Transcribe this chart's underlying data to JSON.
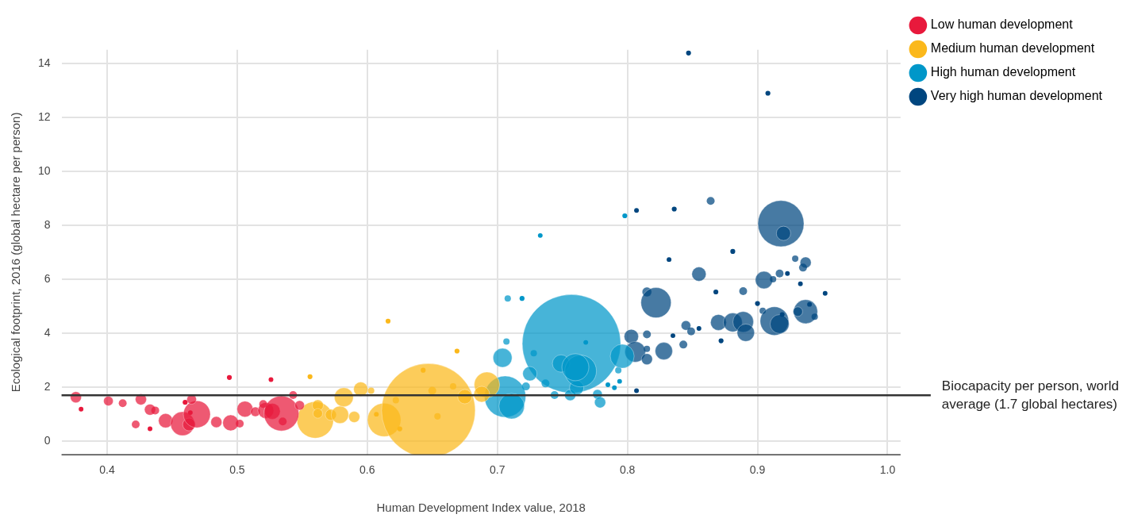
{
  "chart_data": {
    "type": "bubble",
    "xlabel": "Human Development Index value, 2018",
    "ylabel": "Ecological footprint, 2016 (global hectare per person)",
    "xlim": [
      0.365,
      1.01
    ],
    "ylim": [
      -0.5,
      14.5
    ],
    "xticks": [
      0.4,
      0.5,
      0.6,
      0.7,
      0.8,
      0.9,
      {
        "value": 1,
        "label": "1.0"
      }
    ],
    "yticks": [
      0,
      2,
      4,
      6,
      8,
      10,
      12,
      14
    ],
    "grid": true,
    "legend": "top right",
    "relative": false,
    "ref_lines": [
      {
        "axis": "y",
        "value": 1.7,
        "label": "Biocapacity per person, world average (1.7 global hectares)",
        "color": "#333333"
      }
    ],
    "series": [
      {
        "name": "Low human development",
        "color": "#e8193c",
        "x": [
          0.376,
          0.38,
          0.401,
          0.412,
          0.426,
          0.433,
          0.437,
          0.422,
          0.433,
          0.445,
          0.458,
          0.463,
          0.469,
          0.465,
          0.464,
          0.484,
          0.495,
          0.502,
          0.494,
          0.506,
          0.514,
          0.522,
          0.527,
          0.534,
          0.535,
          0.526,
          0.543,
          0.548,
          0.52,
          0.46
        ],
        "values": [
          1.63,
          1.19,
          1.49,
          1.41,
          1.55,
          1.17,
          1.14,
          0.62,
          0.46,
          0.76,
          0.65,
          0.62,
          1.0,
          1.55,
          1.06,
          0.71,
          0.68,
          0.65,
          2.36,
          1.19,
          1.09,
          1.14,
          1.11,
          1.03,
          0.73,
          2.28,
          1.71,
          1.33,
          1.38,
          1.44
        ],
        "sizes": [
          0.0127,
          0.0023,
          0.0094,
          0.0065,
          0.0127,
          0.0127,
          0.0065,
          0.0065,
          0.0023,
          0.021,
          0.059,
          0.0167,
          0.075,
          0.0094,
          0.0023,
          0.0127,
          0.026,
          0.0065,
          0.0025,
          0.026,
          0.0094,
          0.026,
          0.026,
          0.126,
          0.0065,
          0.0023,
          0.0065,
          0.0094,
          0.0065,
          0.0025
        ]
      },
      {
        "name": "Medium human development",
        "color": "#fbb81b",
        "x": [
          0.56,
          0.562,
          0.562,
          0.572,
          0.579,
          0.582,
          0.59,
          0.595,
          0.603,
          0.613,
          0.616,
          0.556,
          0.647,
          0.643,
          0.65,
          0.666,
          0.675,
          0.654,
          0.669,
          0.692,
          0.688,
          0.622,
          0.607,
          0.625
        ],
        "values": [
          0.79,
          1.33,
          1.03,
          0.98,
          0.98,
          1.63,
          0.9,
          1.93,
          1.87,
          0.79,
          4.45,
          2.39,
          1.14,
          2.63,
          1.87,
          2.03,
          1.65,
          0.92,
          3.34,
          2.09,
          1.74,
          1.52,
          1.0,
          0.46
        ],
        "sizes": [
          0.138,
          0.0127,
          0.0094,
          0.0127,
          0.031,
          0.037,
          0.0127,
          0.021,
          0.0042,
          0.115,
          0.0025,
          0.0025,
          0.906,
          0.0025,
          0.0065,
          0.0042,
          0.021,
          0.0042,
          0.0025,
          0.067,
          0.026,
          0.0042,
          0.0023,
          0.0025
        ]
      },
      {
        "name": "High human development",
        "color": "#0097c9",
        "x": [
          0.757,
          0.704,
          0.707,
          0.706,
          0.711,
          0.722,
          0.725,
          0.728,
          0.737,
          0.744,
          0.756,
          0.761,
          0.749,
          0.764,
          0.76,
          0.777,
          0.779,
          0.785,
          0.79,
          0.794,
          0.793,
          0.796,
          0.768,
          0.708,
          0.733,
          0.798,
          0.719
        ],
        "values": [
          3.61,
          3.09,
          3.69,
          1.65,
          1.3,
          2.03,
          2.5,
          3.26,
          2.14,
          1.71,
          1.71,
          1.98,
          2.88,
          2.6,
          2.74,
          1.74,
          1.44,
          2.09,
          1.98,
          2.22,
          2.63,
          3.15,
          3.66,
          5.29,
          7.62,
          8.35,
          5.29
        ],
        "sizes": [
          1,
          0.037,
          0.0042,
          0.176,
          0.067,
          0.0065,
          0.021,
          0.0042,
          0.0065,
          0.0065,
          0.0127,
          0.021,
          0.031,
          0.104,
          0.075,
          0.0094,
          0.0127,
          0.0023,
          0.0023,
          0.0023,
          0.0042,
          0.059,
          0.0023,
          0.0042,
          0.0023,
          0.0025,
          0.0025
        ]
      },
      {
        "name": "Very high human development",
        "color": "#00467f",
        "x": [
          0.847,
          0.908,
          0.864,
          0.807,
          0.836,
          0.918,
          0.92,
          0.881,
          0.832,
          0.929,
          0.937,
          0.935,
          0.855,
          0.905,
          0.912,
          0.917,
          0.923,
          0.933,
          0.952,
          0.868,
          0.889,
          0.815,
          0.822,
          0.9,
          0.904,
          0.913,
          0.917,
          0.919,
          0.937,
          0.94,
          0.931,
          0.944,
          0.87,
          0.881,
          0.889,
          0.891,
          0.872,
          0.845,
          0.849,
          0.855,
          0.835,
          0.843,
          0.828,
          0.815,
          0.803,
          0.806,
          0.815,
          0.815,
          0.807
        ],
        "values": [
          14.38,
          12.89,
          8.9,
          8.55,
          8.6,
          8.06,
          7.7,
          7.03,
          6.73,
          6.76,
          6.62,
          6.43,
          6.19,
          5.97,
          6.0,
          6.21,
          6.21,
          5.83,
          5.48,
          5.53,
          5.56,
          5.53,
          5.13,
          5.1,
          4.83,
          4.45,
          4.34,
          4.69,
          4.8,
          5.07,
          4.8,
          4.61,
          4.4,
          4.4,
          4.42,
          4.02,
          3.72,
          4.29,
          4.07,
          4.18,
          3.91,
          3.58,
          3.34,
          3.96,
          3.88,
          3.31,
          3.42,
          3.04,
          1.87
        ],
        "sizes": [
          0.0025,
          0.0025,
          0.0065,
          0.0023,
          0.0025,
          0.219,
          0.021,
          0.0025,
          0.0023,
          0.0042,
          0.0127,
          0.0065,
          0.021,
          0.031,
          0.0042,
          0.0065,
          0.0023,
          0.0023,
          0.0023,
          0.0025,
          0.0065,
          0.0094,
          0.094,
          0.0025,
          0.0042,
          0.084,
          0.037,
          0.0023,
          0.059,
          0.0023,
          0.0094,
          0.0042,
          0.026,
          0.037,
          0.044,
          0.031,
          0.0025,
          0.0094,
          0.0065,
          0.0023,
          0.0023,
          0.0065,
          0.031,
          0.0065,
          0.021,
          0.044,
          0.0042,
          0.0127,
          0.0023
        ]
      }
    ]
  }
}
